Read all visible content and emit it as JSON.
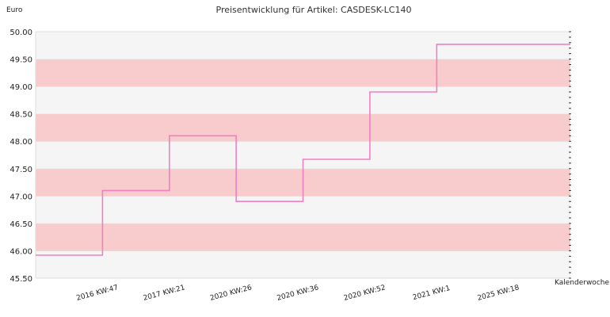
{
  "chart_data": {
    "type": "line",
    "title": "Preisentwicklung für Artikel: CASDESK-LC140",
    "ylabel": "Euro",
    "xlabel": "Kalenderwoche",
    "ylim": [
      45.5,
      50.0
    ],
    "ytick_step": 0.5,
    "yticks": [
      "45.50",
      "46.00",
      "46.50",
      "47.00",
      "47.50",
      "48.00",
      "48.50",
      "49.00",
      "49.50",
      "50.00"
    ],
    "categories": [
      "2016 KW:47",
      "2017 KW:21",
      "2020 KW:26",
      "2020 KW:36",
      "2020 KW:52",
      "2021 KW:1",
      "2025 KW:18"
    ],
    "series": [
      {
        "values": [
          45.92,
          47.1,
          48.1,
          46.9,
          47.67,
          48.9,
          49.77
        ],
        "step": true
      }
    ],
    "grid": true,
    "band_color": "#f8cccc",
    "band_alt_color": "#f5f5f5",
    "line_color": "#f080c0"
  }
}
